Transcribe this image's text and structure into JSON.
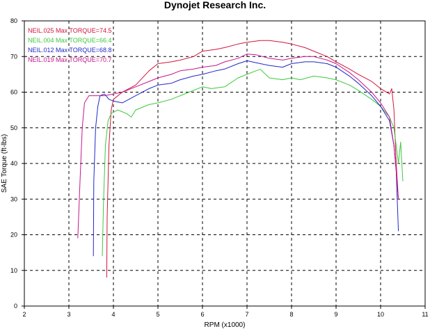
{
  "chart_data": {
    "type": "line",
    "title": "Dynojet Research Inc.",
    "xlabel": "RPM (x1000)",
    "ylabel": "SAE Torque (ft-lbs)",
    "xlim": [
      2,
      11
    ],
    "ylim": [
      0,
      80
    ],
    "x_ticks": [
      "2",
      "3",
      "4",
      "5",
      "6",
      "7",
      "8",
      "9",
      "10",
      "11"
    ],
    "y_ticks": [
      "0",
      "10",
      "20",
      "30",
      "40",
      "50",
      "60",
      "70",
      "80"
    ],
    "grid": true,
    "legend_position": "top-left",
    "series": [
      {
        "name": "NEIL.025",
        "label": "NEIL.025  Max TORQUE=74.5",
        "color": "#d2143c",
        "points": [
          [
            3.85,
            8
          ],
          [
            3.86,
            25
          ],
          [
            3.9,
            45
          ],
          [
            3.95,
            55
          ],
          [
            4.0,
            58
          ],
          [
            4.2,
            60
          ],
          [
            4.5,
            62
          ],
          [
            4.8,
            66
          ],
          [
            5.0,
            68
          ],
          [
            5.3,
            68.5
          ],
          [
            5.5,
            69
          ],
          [
            5.8,
            70
          ],
          [
            6.0,
            71.5
          ],
          [
            6.3,
            72
          ],
          [
            6.5,
            72.5
          ],
          [
            6.8,
            73.5
          ],
          [
            7.0,
            74
          ],
          [
            7.3,
            74.5
          ],
          [
            7.5,
            74.5
          ],
          [
            7.8,
            74
          ],
          [
            8.0,
            73.5
          ],
          [
            8.3,
            72.5
          ],
          [
            8.5,
            71.5
          ],
          [
            8.8,
            70
          ],
          [
            9.0,
            68.5
          ],
          [
            9.3,
            66.5
          ],
          [
            9.5,
            65
          ],
          [
            9.8,
            63
          ],
          [
            10.0,
            61
          ],
          [
            10.2,
            59.5
          ],
          [
            10.25,
            61
          ],
          [
            10.3,
            55
          ],
          [
            10.35,
            40
          ],
          [
            10.4,
            30
          ]
        ]
      },
      {
        "name": "NEIL.004",
        "label": "NEIL.004  Max TORQUE=66.4",
        "color": "#3cc83c",
        "points": [
          [
            3.75,
            14
          ],
          [
            3.78,
            30
          ],
          [
            3.82,
            45
          ],
          [
            3.88,
            52
          ],
          [
            3.95,
            54
          ],
          [
            4.1,
            55
          ],
          [
            4.3,
            54
          ],
          [
            4.4,
            53
          ],
          [
            4.5,
            55
          ],
          [
            4.8,
            56.5
          ],
          [
            5.0,
            57
          ],
          [
            5.3,
            58
          ],
          [
            5.5,
            59
          ],
          [
            5.8,
            60.5
          ],
          [
            6.0,
            61.5
          ],
          [
            6.2,
            61
          ],
          [
            6.5,
            61.5
          ],
          [
            6.8,
            64
          ],
          [
            7.0,
            65
          ],
          [
            7.2,
            66
          ],
          [
            7.3,
            66.4
          ],
          [
            7.5,
            64
          ],
          [
            7.8,
            63.5
          ],
          [
            8.0,
            64
          ],
          [
            8.2,
            63.5
          ],
          [
            8.5,
            64.5
          ],
          [
            8.8,
            64
          ],
          [
            9.0,
            63.5
          ],
          [
            9.3,
            62
          ],
          [
            9.5,
            60.5
          ],
          [
            9.8,
            58
          ],
          [
            10.0,
            56
          ],
          [
            10.2,
            53
          ],
          [
            10.3,
            50
          ],
          [
            10.35,
            45
          ],
          [
            10.4,
            40
          ],
          [
            10.45,
            46
          ],
          [
            10.5,
            35
          ]
        ]
      },
      {
        "name": "NEIL.012",
        "label": "NEIL.012  Max TORQUE=68.8",
        "color": "#1e28c8",
        "points": [
          [
            3.55,
            14
          ],
          [
            3.56,
            35
          ],
          [
            3.6,
            50
          ],
          [
            3.65,
            56
          ],
          [
            3.7,
            59
          ],
          [
            3.8,
            59.5
          ],
          [
            3.9,
            58
          ],
          [
            4.0,
            57.5
          ],
          [
            4.2,
            57
          ],
          [
            4.5,
            59
          ],
          [
            4.8,
            61
          ],
          [
            5.0,
            62
          ],
          [
            5.3,
            62.5
          ],
          [
            5.5,
            63.5
          ],
          [
            5.8,
            64.5
          ],
          [
            6.0,
            65
          ],
          [
            6.3,
            66
          ],
          [
            6.5,
            66.5
          ],
          [
            6.8,
            68
          ],
          [
            7.0,
            68.8
          ],
          [
            7.3,
            68
          ],
          [
            7.5,
            67.5
          ],
          [
            7.8,
            67
          ],
          [
            8.0,
            68
          ],
          [
            8.3,
            68.5
          ],
          [
            8.5,
            68.5
          ],
          [
            8.8,
            68
          ],
          [
            9.0,
            67
          ],
          [
            9.3,
            64.5
          ],
          [
            9.5,
            62.5
          ],
          [
            9.8,
            59
          ],
          [
            10.0,
            56
          ],
          [
            10.2,
            52
          ],
          [
            10.3,
            45
          ],
          [
            10.35,
            38
          ],
          [
            10.4,
            21
          ]
        ]
      },
      {
        "name": "NEIL.019",
        "label": "NEIL.019  Max TORQUE=70.7",
        "color": "#c8148c",
        "points": [
          [
            3.2,
            19
          ],
          [
            3.25,
            35
          ],
          [
            3.3,
            50
          ],
          [
            3.35,
            57
          ],
          [
            3.45,
            59
          ],
          [
            3.6,
            59
          ],
          [
            3.8,
            59
          ],
          [
            4.0,
            59.5
          ],
          [
            4.2,
            60
          ],
          [
            4.5,
            61.5
          ],
          [
            4.8,
            63
          ],
          [
            5.0,
            64
          ],
          [
            5.3,
            65
          ],
          [
            5.5,
            66
          ],
          [
            5.8,
            66.5
          ],
          [
            6.0,
            67
          ],
          [
            6.3,
            67.5
          ],
          [
            6.5,
            68.5
          ],
          [
            6.8,
            69.5
          ],
          [
            7.0,
            70.7
          ],
          [
            7.2,
            70.5
          ],
          [
            7.5,
            69.5
          ],
          [
            7.8,
            69
          ],
          [
            8.0,
            69.5
          ],
          [
            8.3,
            70
          ],
          [
            8.5,
            70
          ],
          [
            8.8,
            69
          ],
          [
            9.0,
            68
          ],
          [
            9.3,
            65.5
          ],
          [
            9.5,
            63.5
          ],
          [
            9.8,
            60
          ],
          [
            10.0,
            57
          ],
          [
            10.2,
            53
          ],
          [
            10.3,
            45
          ],
          [
            10.35,
            38
          ],
          [
            10.4,
            30
          ]
        ]
      }
    ]
  }
}
